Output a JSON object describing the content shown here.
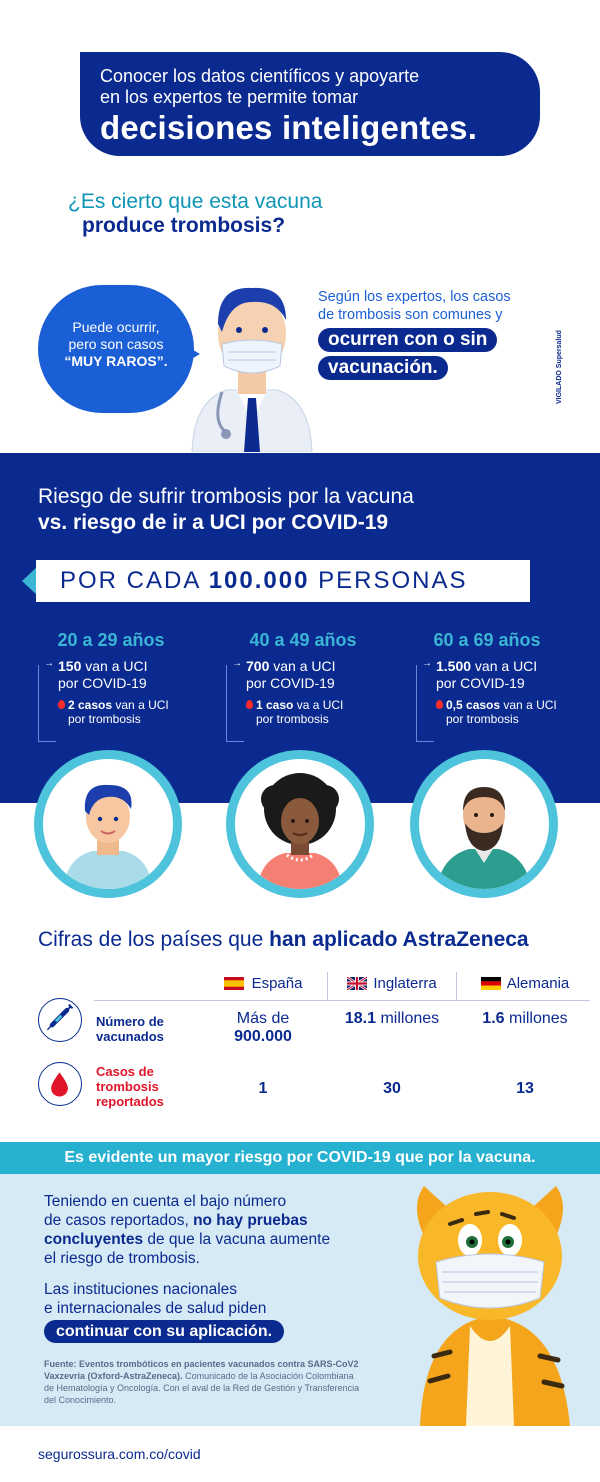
{
  "header": {
    "line1": "Conocer los datos científicos y apoyarte",
    "line2": "en los expertos te permite tomar",
    "line3": "decisiones inteligentes."
  },
  "question": {
    "line1": "¿Es cierto que esta vacuna",
    "line2": "produce trombosis?"
  },
  "speech": {
    "line1": "Puede ocurrir,",
    "line2": "pero son casos",
    "line3": "“MUY RAROS”."
  },
  "experts": {
    "line1": "Según los expertos, los casos",
    "line2": "de trombosis son comunes y",
    "pill1": "ocurren con o sin",
    "pill2": "vacunación."
  },
  "vigilado": "VIGILADO Supersalud",
  "risk": {
    "title1": "Riesgo de sufrir trombosis por la vacuna",
    "title2": "vs. riesgo de ir a UCI por COVID-19",
    "per_prefix": "POR CADA ",
    "per_number": "100.000",
    "per_suffix": " PERSONAS",
    "groups": [
      {
        "age": "20 a 29 años",
        "uci_num": "150",
        "uci_text": " van a UCI",
        "uci_line2": "por COVID-19",
        "tromb_num": "2 casos",
        "tromb_text": " van a UCI",
        "tromb_line2": "por trombosis"
      },
      {
        "age": "40 a 49 años",
        "uci_num": "700",
        "uci_text": " van a UCI",
        "uci_line2": "por COVID-19",
        "tromb_num": "1 caso",
        "tromb_text": " va a UCI",
        "tromb_line2": "por trombosis"
      },
      {
        "age": "60 a 69 años",
        "uci_num": "1.500",
        "uci_text": " van a UCI",
        "uci_line2": "por COVID-19",
        "tromb_num": "0,5 casos",
        "tromb_text": " van a UCI",
        "tromb_line2": "por trombosis"
      }
    ]
  },
  "countries": {
    "title_prefix": "Cifras de los países que ",
    "title_bold": "han aplicado AstraZeneca",
    "columns": [
      "España",
      "Inglaterra",
      "Alemania"
    ],
    "row1_label_1": "Número de",
    "row1_label_2": "vacunados",
    "row1": [
      {
        "line1": "Más de",
        "line2": "900.000"
      },
      {
        "bold": "18.1",
        "rest": " millones"
      },
      {
        "bold": "1.6",
        "rest": " millones"
      }
    ],
    "row2_label_1": "Casos de",
    "row2_label_2": "trombosis",
    "row2_label_3": "reportados",
    "row2": [
      "1",
      "30",
      "13"
    ]
  },
  "evident": "Es evidente un mayor riesgo por COVID-19 que por la vacuna.",
  "conclusion": {
    "p1_a": "Teniendo en cuenta el bajo número",
    "p1_b": "de casos reportados, ",
    "p1_bold1": "no hay pruebas",
    "p1_bold2": "concluyentes",
    "p1_c": " de que la vacuna aumente",
    "p1_d": "el riesgo de trombosis.",
    "p2_a": "Las instituciones nacionales",
    "p2_b": "e internacionales de salud piden",
    "p2_pill": "continuar con su aplicación."
  },
  "source": {
    "bold": "Fuente: Eventos trombóticos en pacientes vacunados contra SARS-CoV2 Vaxzevria (Oxford-AstraZeneca).",
    "rest": " Comunicado de la Asociación Colombiana de Hematología y Oncología. Con el aval de la Red de Gestión y Transferencia del Conocimiento."
  },
  "footer": "segurossura.com.co/covid",
  "colors": {
    "navy": "#0b2a8f",
    "cyan": "#27b1d1",
    "blue": "#1b5fd6",
    "red": "#e0152a",
    "light": "#d6eaf5"
  }
}
